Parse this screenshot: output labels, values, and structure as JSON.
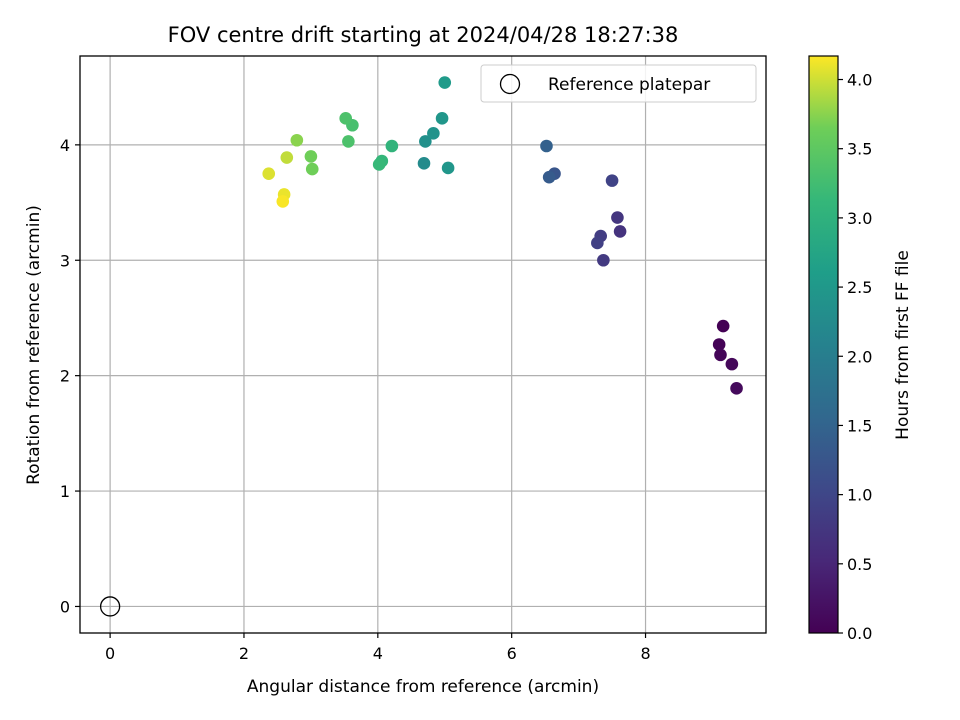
{
  "chart_data": {
    "type": "scatter",
    "title": "FOV centre drift starting at 2024/04/28 18:27:38",
    "xlabel": "Angular distance from reference (arcmin)",
    "ylabel": "Rotation from reference (arcmin)",
    "xlim": [
      -0.45,
      9.8
    ],
    "ylim": [
      -0.23,
      4.77
    ],
    "x_ticks": [
      0,
      2,
      4,
      6,
      8
    ],
    "y_ticks": [
      0,
      1,
      2,
      3,
      4
    ],
    "grid": true,
    "legend": {
      "position": "top-right",
      "entries": [
        "Reference platepar"
      ]
    },
    "reference_point": {
      "x": 0,
      "y": 0
    },
    "colorbar": {
      "label": "Hours from first FF file",
      "colormap": "viridis",
      "range": [
        0,
        4.17
      ],
      "ticks": [
        "0.0",
        "0.5",
        "1.0",
        "1.5",
        "2.0",
        "2.5",
        "3.0",
        "3.5",
        "4.0"
      ]
    },
    "series": [
      {
        "points": [
          {
            "x": 9.16,
            "y": 2.43,
            "c": 0.0
          },
          {
            "x": 9.1,
            "y": 2.27,
            "c": 0.03
          },
          {
            "x": 9.12,
            "y": 2.18,
            "c": 0.06
          },
          {
            "x": 9.29,
            "y": 2.1,
            "c": 0.09
          },
          {
            "x": 9.36,
            "y": 1.89,
            "c": 0.12
          },
          {
            "x": 7.62,
            "y": 3.25,
            "c": 0.7
          },
          {
            "x": 7.58,
            "y": 3.37,
            "c": 0.75
          },
          {
            "x": 7.37,
            "y": 3.0,
            "c": 0.8
          },
          {
            "x": 7.33,
            "y": 3.21,
            "c": 0.85
          },
          {
            "x": 7.28,
            "y": 3.15,
            "c": 0.9
          },
          {
            "x": 7.5,
            "y": 3.69,
            "c": 0.95
          },
          {
            "x": 6.64,
            "y": 3.75,
            "c": 1.25
          },
          {
            "x": 6.56,
            "y": 3.72,
            "c": 1.35
          },
          {
            "x": 6.52,
            "y": 3.99,
            "c": 1.45
          },
          {
            "x": 4.69,
            "y": 3.84,
            "c": 2.25
          },
          {
            "x": 4.71,
            "y": 4.03,
            "c": 2.35
          },
          {
            "x": 4.83,
            "y": 4.1,
            "c": 2.4
          },
          {
            "x": 4.96,
            "y": 4.23,
            "c": 2.45
          },
          {
            "x": 5.0,
            "y": 4.54,
            "c": 2.55
          },
          {
            "x": 5.05,
            "y": 3.8,
            "c": 2.45
          },
          {
            "x": 4.21,
            "y": 3.99,
            "c": 3.05
          },
          {
            "x": 4.06,
            "y": 3.86,
            "c": 3.1
          },
          {
            "x": 4.02,
            "y": 3.83,
            "c": 3.15
          },
          {
            "x": 3.62,
            "y": 4.17,
            "c": 3.3
          },
          {
            "x": 3.52,
            "y": 4.23,
            "c": 3.35
          },
          {
            "x": 3.56,
            "y": 4.03,
            "c": 3.35
          },
          {
            "x": 3.02,
            "y": 3.79,
            "c": 3.65
          },
          {
            "x": 3.0,
            "y": 3.9,
            "c": 3.65
          },
          {
            "x": 2.79,
            "y": 4.04,
            "c": 3.75
          },
          {
            "x": 2.64,
            "y": 3.89,
            "c": 3.95
          },
          {
            "x": 2.37,
            "y": 3.75,
            "c": 4.05
          },
          {
            "x": 2.6,
            "y": 3.57,
            "c": 4.1
          },
          {
            "x": 2.58,
            "y": 3.51,
            "c": 4.15
          }
        ]
      }
    ]
  }
}
